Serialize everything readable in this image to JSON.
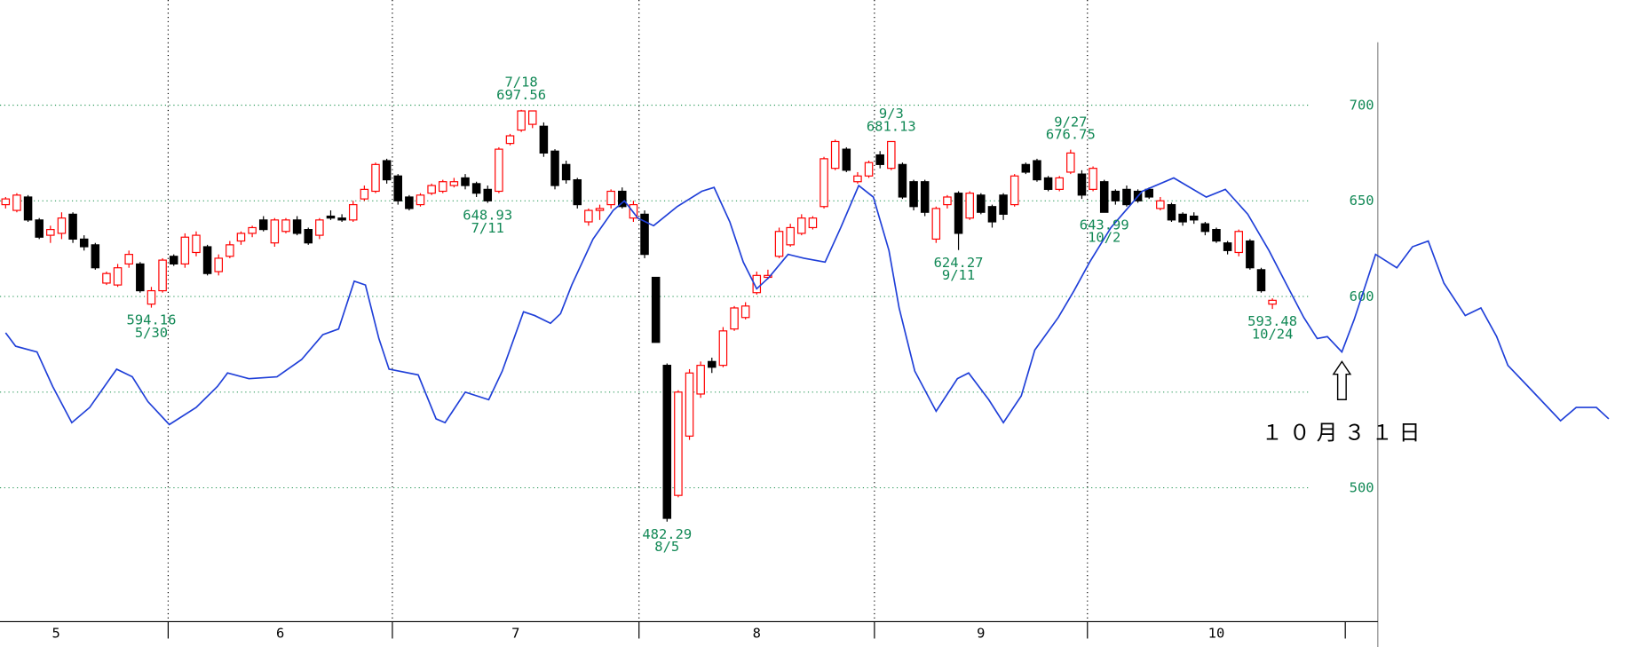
{
  "chart_data": {
    "type": "candlestick",
    "xlim": [
      -0.5,
      145.7
    ],
    "ylim": [
      430,
      755
    ],
    "yticks": [
      500,
      600,
      650,
      700
    ],
    "ygrid": [
      500,
      550,
      600,
      650,
      700
    ],
    "xticks": [
      14.5,
      34.5,
      56.5,
      77.5,
      96.5,
      119.5
    ],
    "xtick_labels": [
      "5",
      "6",
      "7",
      "8",
      "9",
      "10"
    ],
    "grid_color": "#2e9a5c",
    "label_color": "#118855",
    "candles": {
      "up_color": "#ff0000",
      "down_color": "#000000",
      "open": [
        648,
        645,
        652,
        640,
        632,
        633,
        643,
        630,
        627,
        607,
        606,
        617,
        617,
        596,
        603,
        621,
        617,
        623,
        626,
        613,
        621,
        629,
        633,
        640,
        628,
        634,
        640,
        635,
        632,
        642,
        641,
        640,
        651,
        655,
        671,
        663,
        652,
        648,
        654,
        655,
        658,
        662,
        659,
        656,
        655,
        680,
        687,
        690,
        689,
        676,
        669,
        661,
        639,
        645,
        648,
        655,
        641,
        643,
        610,
        564,
        496,
        527,
        549,
        566,
        564,
        583,
        589,
        602,
        610,
        621,
        627,
        633,
        636,
        647,
        667,
        677,
        660,
        663,
        674,
        667,
        669,
        660,
        660,
        630,
        648,
        654,
        641,
        653,
        647,
        653,
        648,
        669,
        671,
        662,
        656,
        665,
        664,
        656,
        660,
        655,
        656,
        655,
        656,
        646,
        648,
        643,
        642,
        638,
        635,
        628,
        623,
        629,
        614,
        596
      ],
      "high": [
        652,
        654,
        653,
        641,
        637,
        644,
        644,
        632,
        628,
        613,
        617,
        624,
        618,
        605,
        620,
        622,
        633,
        634,
        627,
        622,
        629,
        634,
        637,
        642,
        641,
        641,
        642,
        636,
        641,
        645,
        643,
        650,
        658,
        670,
        672,
        664,
        653,
        654,
        659,
        661,
        662,
        664,
        660,
        658,
        678,
        685,
        697.56,
        697,
        691,
        677,
        671,
        662,
        646,
        648,
        656,
        657,
        650,
        645,
        610,
        565,
        551,
        562,
        566,
        568,
        584,
        595,
        597,
        613,
        614,
        636,
        638,
        643,
        642,
        673,
        682,
        678,
        665,
        671,
        676,
        681.13,
        670,
        661,
        661,
        647,
        653,
        655,
        655,
        654,
        648,
        654,
        664,
        670,
        672,
        663,
        663,
        676.75,
        666,
        668,
        661,
        656,
        658,
        656,
        657,
        652,
        649,
        644,
        644,
        639,
        636,
        629,
        635,
        630,
        615,
        599
      ],
      "low": [
        646,
        644,
        639,
        630,
        628,
        630,
        628,
        624,
        614,
        606,
        605,
        615,
        602,
        594.16,
        602,
        616,
        615,
        621,
        611,
        611,
        620,
        627,
        631,
        634,
        626,
        633,
        632,
        627,
        630,
        640,
        639,
        639,
        650,
        654,
        659,
        648,
        645,
        647,
        653,
        654,
        657,
        656,
        652,
        648.93,
        654,
        679,
        686,
        688,
        673,
        656,
        659,
        646,
        637,
        640,
        646,
        646,
        639,
        620,
        576,
        482.29,
        495,
        525,
        547,
        560,
        563,
        582,
        588,
        601,
        609,
        620,
        626,
        632,
        635,
        646,
        666,
        665,
        659,
        662,
        667,
        666,
        651,
        645,
        642,
        628,
        646,
        624.27,
        640,
        643,
        636,
        640,
        647,
        664,
        660,
        655,
        655,
        664,
        651,
        655,
        643.99,
        648,
        647,
        649,
        651,
        645,
        639,
        637,
        638,
        632,
        628,
        622,
        621,
        614,
        602,
        593.48
      ],
      "close": [
        651,
        653,
        640,
        631,
        635,
        641,
        630,
        626,
        615,
        612,
        615,
        622,
        603,
        603,
        619,
        617,
        631,
        632,
        612,
        620,
        627,
        633,
        636,
        635,
        640,
        640,
        633,
        628,
        640,
        641,
        640,
        648,
        656,
        669,
        661,
        650,
        646,
        653,
        658,
        660,
        660,
        658,
        654,
        650,
        677,
        684,
        697,
        697,
        675,
        658,
        661,
        648,
        645,
        646,
        655,
        647,
        648,
        622,
        576,
        484,
        550,
        560,
        564,
        563,
        582,
        594,
        595,
        611,
        611,
        634,
        636,
        641,
        641,
        672,
        681,
        666,
        663,
        670,
        669,
        681,
        652,
        647,
        644,
        646,
        652,
        633,
        654,
        644,
        639,
        643,
        663,
        665,
        661,
        656,
        662,
        675,
        653,
        667,
        644,
        650,
        648,
        650,
        652,
        650,
        640,
        639,
        640,
        634,
        629,
        624,
        634,
        615,
        603,
        598
      ]
    },
    "line": {
      "color": "#1f3fd8",
      "x": [
        0,
        0.9,
        2.8,
        4.2,
        5.9,
        7.5,
        9.9,
        11.3,
        12.7,
        14.6,
        17,
        18.9,
        19.8,
        21.7,
        24.2,
        26.4,
        28.3,
        29.7,
        31.1,
        32.1,
        33.3,
        34.2,
        36.8,
        38.4,
        39.2,
        41,
        43.1,
        44.3,
        46.2,
        47.2,
        48.6,
        49.5,
        50.5,
        52.4,
        54.2,
        55.2,
        56.4,
        57.8,
        59.9,
        62.1,
        63.2,
        64.6,
        65.8,
        67,
        68.1,
        69.8,
        71.2,
        73.1,
        74.5,
        76.1,
        77.4,
        78.8,
        79.7,
        81.1,
        83,
        84.9,
        85.9,
        87.7,
        89,
        90.6,
        91.8,
        93.9,
        95.3,
        96.7,
        98.6,
        101.4,
        104.2,
        107.1,
        108.8,
        110.8,
        112.7,
        114.2,
        115.8,
        117,
        117.9,
        119.2,
        120.3,
        122.2,
        124.1,
        125.5,
        126.9,
        128.3,
        130.2,
        131.6,
        133,
        134,
        135.8,
        138.7,
        140.1,
        141.9,
        143
      ],
      "values": [
        581,
        574,
        571,
        553,
        534,
        542,
        562,
        558,
        545,
        533,
        542,
        553,
        560,
        557,
        558,
        567,
        580,
        583,
        608,
        606,
        578,
        562,
        559,
        536,
        534,
        550,
        546,
        561,
        592,
        590,
        586,
        591,
        606,
        630,
        645,
        650,
        641,
        637,
        647,
        655,
        657,
        639,
        618,
        604,
        610,
        622,
        620,
        618,
        636,
        658,
        652,
        624,
        594,
        561,
        540,
        557,
        560,
        546,
        534,
        548,
        572,
        589,
        603,
        618,
        636,
        655,
        662,
        652,
        656,
        643,
        624,
        607,
        589,
        578,
        579,
        571,
        588,
        622,
        615,
        626,
        629,
        607,
        590,
        594,
        579,
        564,
        553,
        535,
        542,
        542,
        536
      ]
    },
    "annotations": [
      {
        "x": 13,
        "price": 594.16,
        "date": "5/30",
        "position": "below"
      },
      {
        "x": 43,
        "price": 648.93,
        "date": "7/11",
        "position": "below"
      },
      {
        "x": 46,
        "price": 697.56,
        "date": "7/18",
        "position": "above"
      },
      {
        "x": 59,
        "price": 482.29,
        "date": "8/5",
        "position": "below"
      },
      {
        "x": 79,
        "price": 681.13,
        "date": "9/3",
        "position": "above"
      },
      {
        "x": 85,
        "price": 624.27,
        "date": "9/11",
        "position": "below"
      },
      {
        "x": 95,
        "price": 676.75,
        "date": "9/27",
        "position": "above"
      },
      {
        "x": 98,
        "price": 643.99,
        "date": "10/2",
        "position": "below"
      },
      {
        "x": 113,
        "price": 593.48,
        "date": "10/24",
        "position": "below"
      }
    ],
    "event": {
      "label": "１０月３１日",
      "x": 119.2
    }
  }
}
